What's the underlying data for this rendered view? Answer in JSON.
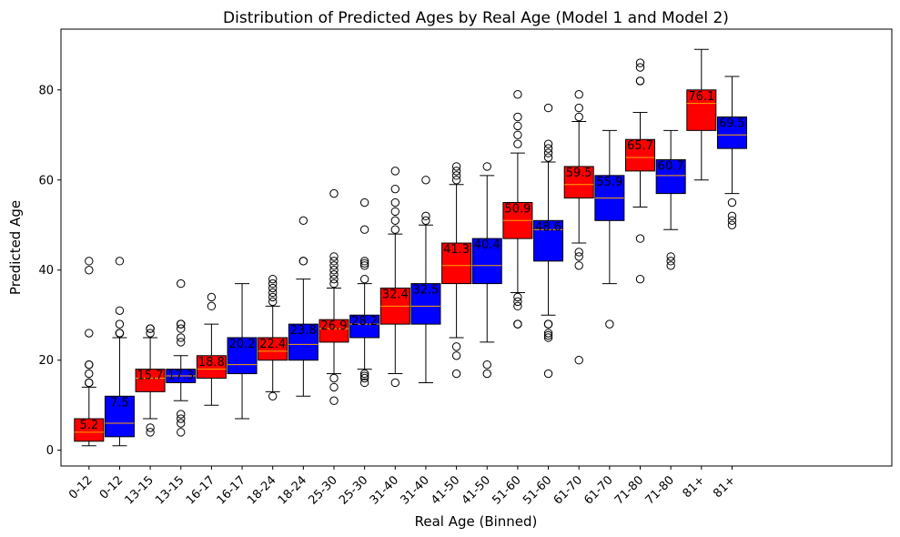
{
  "chart_data": {
    "type": "boxplot",
    "title": "Distribution of Predicted Ages by Real Age (Model 1 and Model 2)",
    "xlabel": "Real Age (Binned)",
    "ylabel": "Predicted Age",
    "ylim": [
      -3.5,
      93.5
    ],
    "yticks": [
      0,
      20,
      40,
      60,
      80
    ],
    "colors": {
      "model1": "#ff0000",
      "model2": "#0000ff",
      "median": "#ffa500",
      "frame": "#000000"
    },
    "bins": [
      "0-12",
      "13-15",
      "16-17",
      "18-24",
      "25-30",
      "31-40",
      "41-50",
      "51-60",
      "61-70",
      "71-80",
      "81+"
    ],
    "boxes": [
      {
        "bin": "0-12",
        "model": 1,
        "label": "5.2",
        "whislo": 1,
        "q1": 2,
        "med": 4,
        "q3": 7,
        "whishi": 14,
        "fliers": [
          15,
          15,
          17,
          19,
          19,
          26,
          40,
          42
        ]
      },
      {
        "bin": "0-12",
        "model": 2,
        "label": "7.5",
        "whislo": 1,
        "q1": 3,
        "med": 6,
        "q3": 12,
        "whishi": 25,
        "fliers": [
          26,
          26,
          26,
          28,
          31,
          42
        ]
      },
      {
        "bin": "13-15",
        "model": 1,
        "label": "15.7",
        "whislo": 7,
        "q1": 13,
        "med": 16,
        "q3": 18,
        "whishi": 25,
        "fliers": [
          4,
          5,
          26,
          27,
          27
        ]
      },
      {
        "bin": "13-15",
        "model": 2,
        "label": "17.3",
        "whislo": 11,
        "q1": 15,
        "med": 16.5,
        "q3": 18,
        "whishi": 21,
        "fliers": [
          4,
          6,
          7,
          8,
          24,
          25,
          27,
          28,
          28,
          37
        ]
      },
      {
        "bin": "16-17",
        "model": 1,
        "label": "18.8",
        "whislo": 10,
        "q1": 16,
        "med": 18,
        "q3": 21,
        "whishi": 28,
        "fliers": [
          32,
          34
        ]
      },
      {
        "bin": "16-17",
        "model": 2,
        "label": "20.2",
        "whislo": 7,
        "q1": 17,
        "med": 19,
        "q3": 25,
        "whishi": 37,
        "fliers": []
      },
      {
        "bin": "18-24",
        "model": 1,
        "label": "22.4",
        "whislo": 13,
        "q1": 20,
        "med": 22,
        "q3": 25,
        "whishi": 32,
        "fliers": [
          12,
          33,
          34,
          35,
          36,
          37,
          38
        ]
      },
      {
        "bin": "18-24",
        "model": 2,
        "label": "23.8",
        "whislo": 12,
        "q1": 20,
        "med": 23.5,
        "q3": 28,
        "whishi": 38,
        "fliers": [
          42,
          42,
          51
        ]
      },
      {
        "bin": "25-30",
        "model": 1,
        "label": "26.9",
        "whislo": 17,
        "q1": 24,
        "med": 27,
        "q3": 29,
        "whishi": 36,
        "fliers": [
          11,
          14,
          16,
          37,
          38,
          39,
          40,
          41,
          42,
          43,
          57
        ]
      },
      {
        "bin": "25-30",
        "model": 2,
        "label": "28.2",
        "whislo": 18,
        "q1": 25,
        "med": 28,
        "q3": 30,
        "whishi": 37,
        "fliers": [
          15,
          16,
          16.5,
          17,
          38,
          41,
          41.5,
          42,
          49,
          55
        ]
      },
      {
        "bin": "31-40",
        "model": 1,
        "label": "32.4",
        "whislo": 17,
        "q1": 28,
        "med": 32,
        "q3": 36,
        "whishi": 48,
        "fliers": [
          15,
          49,
          51,
          53,
          55,
          58,
          62
        ]
      },
      {
        "bin": "31-40",
        "model": 2,
        "label": "32.5",
        "whislo": 15,
        "q1": 28,
        "med": 32,
        "q3": 37,
        "whishi": 50,
        "fliers": [
          51,
          52,
          60
        ]
      },
      {
        "bin": "41-50",
        "model": 1,
        "label": "41.3",
        "whislo": 25,
        "q1": 37,
        "med": 41,
        "q3": 46,
        "whishi": 59,
        "fliers": [
          17,
          21,
          23,
          60,
          61,
          62,
          63
        ]
      },
      {
        "bin": "41-50",
        "model": 2,
        "label": "40.4",
        "whislo": 24,
        "q1": 37,
        "med": 41,
        "q3": 47,
        "whishi": 61,
        "fliers": [
          17,
          19,
          63
        ]
      },
      {
        "bin": "51-60",
        "model": 1,
        "label": "50.9",
        "whislo": 35,
        "q1": 47,
        "med": 51,
        "q3": 55,
        "whishi": 66,
        "fliers": [
          28,
          28,
          32,
          33,
          34,
          68,
          70,
          72,
          74,
          79
        ]
      },
      {
        "bin": "51-60",
        "model": 2,
        "label": "48.6",
        "whislo": 30,
        "q1": 42,
        "med": 49,
        "q3": 51,
        "whishi": 64,
        "fliers": [
          17,
          25,
          25.5,
          26,
          28,
          28,
          65,
          66,
          67,
          68,
          76
        ]
      },
      {
        "bin": "61-70",
        "model": 1,
        "label": "59.5",
        "whislo": 46,
        "q1": 56,
        "med": 59,
        "q3": 63,
        "whishi": 73,
        "fliers": [
          20,
          41,
          43,
          44,
          74,
          76,
          79
        ]
      },
      {
        "bin": "61-70",
        "model": 2,
        "label": "55.9",
        "whislo": 37,
        "q1": 51,
        "med": 56,
        "q3": 61,
        "whishi": 71,
        "fliers": [
          28
        ]
      },
      {
        "bin": "71-80",
        "model": 1,
        "label": "65.7",
        "whislo": 54,
        "q1": 62,
        "med": 65,
        "q3": 69,
        "whishi": 75,
        "fliers": [
          38,
          47,
          82,
          82,
          85,
          86
        ]
      },
      {
        "bin": "71-80",
        "model": 2,
        "label": "60.7",
        "whislo": 49,
        "q1": 57,
        "med": 61,
        "q3": 64.5,
        "whishi": 71,
        "fliers": [
          41,
          42,
          43
        ]
      },
      {
        "bin": "81+",
        "model": 1,
        "label": "76.1",
        "whislo": 60,
        "q1": 71,
        "med": 77,
        "q3": 80,
        "whishi": 89,
        "fliers": []
      },
      {
        "bin": "81+",
        "model": 2,
        "label": "69.5",
        "whislo": 57,
        "q1": 67,
        "med": 70,
        "q3": 74,
        "whishi": 83,
        "fliers": [
          50,
          51,
          52,
          55
        ]
      }
    ]
  }
}
